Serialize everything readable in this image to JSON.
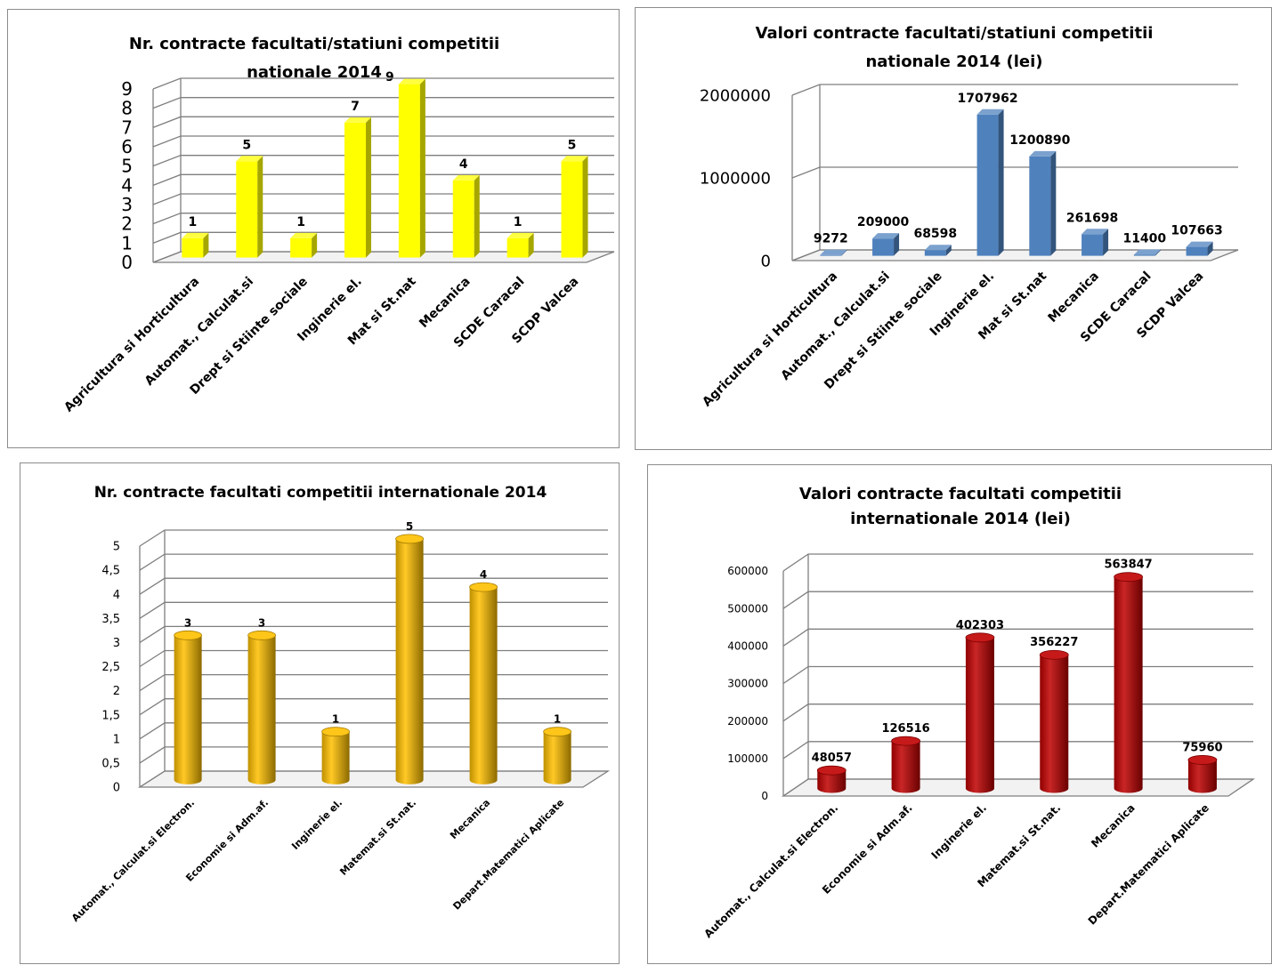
{
  "chart_data": [
    {
      "type": "bar",
      "title": "Nr. contracte facultati/statiuni competitii nationale 2014",
      "title_lines": [
        "Nr. contracte facultati/statiuni competitii",
        "nationale 2014"
      ],
      "title_suffix": "9",
      "categories": [
        "Agricultura si Horticultura",
        "Automat., Calculat.si",
        "Drept si Stiinte sociale",
        "Inginerie el.",
        "Mat si St.nat",
        "Mecanica",
        "SCDE Caracal",
        "SCDP Valcea"
      ],
      "values": [
        1,
        5,
        1,
        7,
        9,
        4,
        1,
        5
      ],
      "data_labels": [
        "1",
        "5",
        "1",
        "7",
        "",
        "4",
        "1",
        "5"
      ],
      "ylim": [
        0,
        9
      ],
      "yticks": [
        "0",
        "1",
        "2",
        "3",
        "4",
        "5",
        "6",
        "7",
        "8",
        "9"
      ],
      "grid": true,
      "color": "#ffff00"
    },
    {
      "type": "bar",
      "title": "Valori contracte facultati/statiuni competitii nationale 2014 (lei)",
      "title_lines": [
        "Valori contracte facultati/statiuni competitii",
        "nationale 2014 (lei)"
      ],
      "categories": [
        "Agricultura si Horticultura",
        "Automat., Calculat.si",
        "Drept si Stiinte sociale",
        "Inginerie el.",
        "Mat si St.nat",
        "Mecanica",
        "SCDE Caracal",
        "SCDP Valcea"
      ],
      "values": [
        9272,
        209000,
        68598,
        1707962,
        1200890,
        261698,
        11400,
        107663
      ],
      "data_labels": [
        "9272",
        "209000",
        "68598",
        "1707962",
        "1200890",
        "261698",
        "11400",
        "107663"
      ],
      "ylim": [
        0,
        2000000
      ],
      "yticks": [
        "0",
        "1000000",
        "2000000"
      ],
      "grid": true,
      "color": "#4f81bd"
    },
    {
      "type": "bar",
      "title": "Nr. contracte facultati competitii internationale 2014",
      "title_lines": [
        "Nr. contracte facultati competitii internationale 2014"
      ],
      "categories": [
        "Automat., Calculat.si Electron.",
        "Economie si Adm.af.",
        "Inginerie el.",
        "Matemat.si St.nat.",
        "Mecanica",
        "Depart.Matematici Aplicate"
      ],
      "values": [
        3,
        3,
        1,
        5,
        4,
        1
      ],
      "data_labels": [
        "3",
        "3",
        "1",
        "5",
        "4",
        "1"
      ],
      "ylim": [
        0,
        5
      ],
      "yticks": [
        "0",
        "0,5",
        "1",
        "1,5",
        "2",
        "2,5",
        "3",
        "3,5",
        "4",
        "4,5",
        "5"
      ],
      "grid": true,
      "color": "#ffc000"
    },
    {
      "type": "bar",
      "title": "Valori contracte facultati competitii internationale 2014 (lei)",
      "title_lines": [
        "Valori contracte facultati competitii",
        "internationale 2014 (lei)"
      ],
      "categories": [
        "Automat., Calculat.si Electron.",
        "Economie si Adm.af.",
        "Inginerie el.",
        "Matemat.si St.nat.",
        "Mecanica",
        "Depart.Matematici Aplicate"
      ],
      "values": [
        48057,
        126516,
        402303,
        356227,
        563847,
        75960
      ],
      "data_labels": [
        "48057",
        "126516",
        "402303",
        "356227",
        "563847",
        "75960"
      ],
      "ylim": [
        0,
        600000
      ],
      "yticks": [
        "0",
        "100000",
        "200000",
        "300000",
        "400000",
        "500000",
        "600000"
      ],
      "grid": true,
      "color": "#c00000"
    }
  ]
}
